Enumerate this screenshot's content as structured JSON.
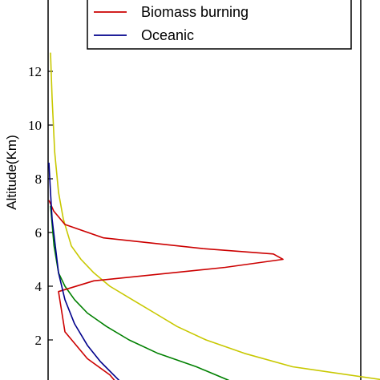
{
  "chart_data": {
    "type": "line",
    "ylabel": "Altitude(Km)",
    "ylim": [
      0,
      13.2
    ],
    "yticks": [
      "2",
      "4",
      "6",
      "8",
      "10",
      "12"
    ],
    "grid": false,
    "legend_placement": "top-right",
    "series": [
      {
        "color": "#c8c800",
        "x": [
          1.05,
          0.76,
          0.61,
          0.49,
          0.4,
          0.33,
          0.26,
          0.19,
          0.14,
          0.1,
          0.07,
          0.045,
          0.03,
          0.018,
          0.01,
          0.005
        ],
        "y": [
          0.5,
          1.0,
          1.5,
          2.0,
          2.5,
          3.0,
          3.5,
          4.0,
          4.5,
          5.0,
          5.5,
          6.5,
          7.5,
          9.0,
          11.0,
          12.7
        ]
      },
      {
        "color": "#008000",
        "x": [
          0.56,
          0.56,
          0.46,
          0.34,
          0.25,
          0.18,
          0.12,
          0.08,
          0.05,
          0.03,
          0.016,
          0.005
        ],
        "y": [
          0.0,
          0.5,
          1.0,
          1.5,
          2.0,
          2.5,
          3.0,
          3.5,
          4.0,
          4.5,
          5.5,
          7.0
        ]
      },
      {
        "name": "Biomass burning",
        "color": "#cc0000",
        "x": [
          0.24,
          0.19,
          0.12,
          0.05,
          0.03,
          0.14,
          0.55,
          0.73,
          0.7,
          0.48,
          0.17,
          0.05,
          0.015,
          0.0
        ],
        "y": [
          0.0,
          0.7,
          1.3,
          2.3,
          3.8,
          4.2,
          4.7,
          5.0,
          5.2,
          5.4,
          5.8,
          6.3,
          6.8,
          7.2
        ]
      },
      {
        "name": "Oceanic",
        "color": "#00008b",
        "x": [
          0.26,
          0.21,
          0.16,
          0.12,
          0.08,
          0.05,
          0.03,
          0.02,
          0.01,
          0.005,
          0.0
        ],
        "y": [
          0.0,
          0.6,
          1.2,
          1.8,
          2.6,
          3.5,
          4.5,
          5.5,
          6.5,
          7.5,
          8.6
        ]
      }
    ]
  }
}
